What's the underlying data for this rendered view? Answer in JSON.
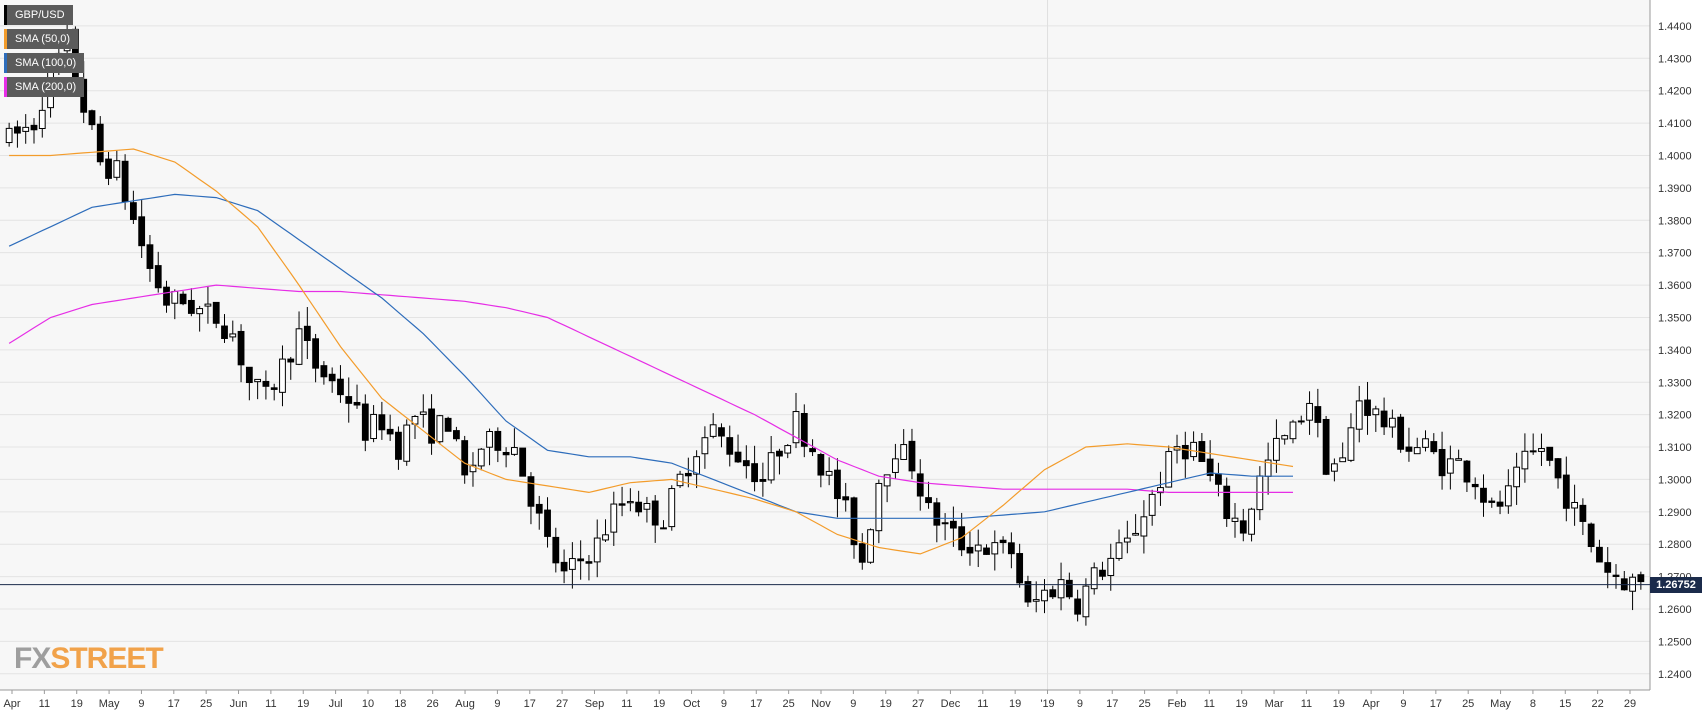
{
  "chart_data": {
    "type": "candlestick",
    "symbol": "GBP/USD",
    "legend": [
      {
        "label": "GBP/USD",
        "color": "#000000"
      },
      {
        "label": "SMA (50,0)",
        "color": "#f39c2b"
      },
      {
        "label": "SMA (100,0)",
        "color": "#2e6dbb"
      },
      {
        "label": "SMA (200,0)",
        "color": "#e62ee6"
      }
    ],
    "ylim": [
      1.235,
      1.448
    ],
    "y_ticks": [
      "1.4400",
      "1.4300",
      "1.4200",
      "1.4100",
      "1.4000",
      "1.3900",
      "1.3800",
      "1.3700",
      "1.3600",
      "1.3500",
      "1.3400",
      "1.3300",
      "1.3200",
      "1.3100",
      "1.3000",
      "1.2900",
      "1.2800",
      "1.2700",
      "1.2600",
      "1.2500",
      "1.2400"
    ],
    "x_ticks": [
      "Apr",
      "11",
      "19",
      "May",
      "9",
      "17",
      "25",
      "Jun",
      "11",
      "19",
      "Jul",
      "10",
      "18",
      "26",
      "Aug",
      "9",
      "17",
      "27",
      "Sep",
      "11",
      "19",
      "Oct",
      "9",
      "17",
      "25",
      "Nov",
      "9",
      "19",
      "27",
      "Dec",
      "11",
      "19",
      "'19",
      "9",
      "17",
      "25",
      "Feb",
      "11",
      "19",
      "Mar",
      "11",
      "19",
      "Apr",
      "9",
      "17",
      "25",
      "May",
      "8",
      "15",
      "22",
      "29"
    ],
    "current_price": 1.26752,
    "current_price_label": "1.26752",
    "sma_control_points": {
      "sma50": [
        [
          0,
          1.4
        ],
        [
          5,
          1.4
        ],
        [
          10,
          1.401
        ],
        [
          15,
          1.402
        ],
        [
          20,
          1.398
        ],
        [
          25,
          1.389
        ],
        [
          30,
          1.378
        ],
        [
          35,
          1.36
        ],
        [
          40,
          1.341
        ],
        [
          45,
          1.325
        ],
        [
          50,
          1.315
        ],
        [
          55,
          1.305
        ],
        [
          60,
          1.3
        ],
        [
          65,
          1.298
        ],
        [
          70,
          1.296
        ],
        [
          75,
          1.299
        ],
        [
          80,
          1.3
        ],
        [
          85,
          1.297
        ],
        [
          90,
          1.294
        ],
        [
          95,
          1.29
        ],
        [
          100,
          1.283
        ],
        [
          105,
          1.279
        ],
        [
          110,
          1.277
        ],
        [
          115,
          1.282
        ],
        [
          120,
          1.292
        ],
        [
          125,
          1.303
        ],
        [
          130,
          1.31
        ],
        [
          135,
          1.311
        ],
        [
          140,
          1.31
        ],
        [
          145,
          1.308
        ],
        [
          150,
          1.306
        ],
        [
          155,
          1.304
        ]
      ],
      "sma100": [
        [
          0,
          1.372
        ],
        [
          10,
          1.384
        ],
        [
          20,
          1.388
        ],
        [
          25,
          1.387
        ],
        [
          30,
          1.383
        ],
        [
          35,
          1.374
        ],
        [
          40,
          1.365
        ],
        [
          45,
          1.356
        ],
        [
          50,
          1.345
        ],
        [
          55,
          1.332
        ],
        [
          60,
          1.318
        ],
        [
          65,
          1.309
        ],
        [
          70,
          1.307
        ],
        [
          75,
          1.307
        ],
        [
          80,
          1.305
        ],
        [
          85,
          1.3
        ],
        [
          90,
          1.295
        ],
        [
          95,
          1.29
        ],
        [
          100,
          1.288
        ],
        [
          105,
          1.288
        ],
        [
          110,
          1.288
        ],
        [
          115,
          1.288
        ],
        [
          120,
          1.289
        ],
        [
          125,
          1.29
        ],
        [
          130,
          1.293
        ],
        [
          135,
          1.296
        ],
        [
          140,
          1.299
        ],
        [
          145,
          1.302
        ],
        [
          150,
          1.301
        ],
        [
          155,
          1.301
        ]
      ],
      "sma200": [
        [
          0,
          1.342
        ],
        [
          5,
          1.35
        ],
        [
          10,
          1.354
        ],
        [
          15,
          1.356
        ],
        [
          20,
          1.358
        ],
        [
          25,
          1.36
        ],
        [
          30,
          1.359
        ],
        [
          35,
          1.358
        ],
        [
          40,
          1.358
        ],
        [
          45,
          1.357
        ],
        [
          50,
          1.356
        ],
        [
          55,
          1.355
        ],
        [
          60,
          1.353
        ],
        [
          65,
          1.35
        ],
        [
          70,
          1.344
        ],
        [
          75,
          1.338
        ],
        [
          80,
          1.332
        ],
        [
          85,
          1.326
        ],
        [
          90,
          1.32
        ],
        [
          95,
          1.313
        ],
        [
          100,
          1.306
        ],
        [
          105,
          1.301
        ],
        [
          110,
          1.299
        ],
        [
          115,
          1.298
        ],
        [
          120,
          1.297
        ],
        [
          125,
          1.297
        ],
        [
          130,
          1.297
        ],
        [
          135,
          1.297
        ],
        [
          140,
          1.296
        ],
        [
          145,
          1.296
        ],
        [
          150,
          1.296
        ],
        [
          155,
          1.296
        ]
      ]
    },
    "close_anchors": [
      [
        0,
        1.405
      ],
      [
        3,
        1.41
      ],
      [
        5,
        1.425
      ],
      [
        7,
        1.435
      ],
      [
        9,
        1.415
      ],
      [
        11,
        1.398
      ],
      [
        13,
        1.395
      ],
      [
        15,
        1.38
      ],
      [
        17,
        1.365
      ],
      [
        19,
        1.355
      ],
      [
        21,
        1.355
      ],
      [
        23,
        1.352
      ],
      [
        25,
        1.35
      ],
      [
        27,
        1.345
      ],
      [
        29,
        1.33
      ],
      [
        31,
        1.325
      ],
      [
        33,
        1.335
      ],
      [
        35,
        1.345
      ],
      [
        37,
        1.335
      ],
      [
        39,
        1.33
      ],
      [
        41,
        1.325
      ],
      [
        43,
        1.315
      ],
      [
        45,
        1.318
      ],
      [
        47,
        1.31
      ],
      [
        49,
        1.32
      ],
      [
        51,
        1.315
      ],
      [
        53,
        1.318
      ],
      [
        55,
        1.3
      ],
      [
        57,
        1.31
      ],
      [
        59,
        1.312
      ],
      [
        61,
        1.31
      ],
      [
        63,
        1.295
      ],
      [
        65,
        1.28
      ],
      [
        67,
        1.27
      ],
      [
        69,
        1.275
      ],
      [
        71,
        1.28
      ],
      [
        73,
        1.29
      ],
      [
        75,
        1.295
      ],
      [
        77,
        1.29
      ],
      [
        79,
        1.288
      ],
      [
        81,
        1.3
      ],
      [
        83,
        1.31
      ],
      [
        85,
        1.315
      ],
      [
        87,
        1.31
      ],
      [
        89,
        1.305
      ],
      [
        91,
        1.3
      ],
      [
        93,
        1.31
      ],
      [
        95,
        1.318
      ],
      [
        97,
        1.31
      ],
      [
        99,
        1.3
      ],
      [
        101,
        1.29
      ],
      [
        103,
        1.275
      ],
      [
        105,
        1.3
      ],
      [
        107,
        1.31
      ],
      [
        109,
        1.305
      ],
      [
        111,
        1.29
      ],
      [
        113,
        1.285
      ],
      [
        115,
        1.28
      ],
      [
        117,
        1.28
      ],
      [
        119,
        1.278
      ],
      [
        121,
        1.278
      ],
      [
        123,
        1.26
      ],
      [
        125,
        1.265
      ],
      [
        127,
        1.268
      ],
      [
        129,
        1.262
      ],
      [
        131,
        1.27
      ],
      [
        133,
        1.275
      ],
      [
        135,
        1.28
      ],
      [
        137,
        1.29
      ],
      [
        139,
        1.3
      ],
      [
        141,
        1.31
      ],
      [
        143,
        1.31
      ],
      [
        145,
        1.3
      ],
      [
        147,
        1.29
      ],
      [
        149,
        1.285
      ],
      [
        151,
        1.3
      ],
      [
        153,
        1.31
      ],
      [
        155,
        1.315
      ],
      [
        157,
        1.325
      ],
      [
        159,
        1.305
      ],
      [
        161,
        1.305
      ],
      [
        163,
        1.325
      ],
      [
        165,
        1.32
      ],
      [
        167,
        1.315
      ],
      [
        169,
        1.31
      ],
      [
        171,
        1.31
      ],
      [
        173,
        1.305
      ],
      [
        175,
        1.305
      ],
      [
        177,
        1.3
      ],
      [
        179,
        1.29
      ],
      [
        181,
        1.295
      ],
      [
        183,
        1.305
      ],
      [
        185,
        1.31
      ],
      [
        187,
        1.3
      ],
      [
        189,
        1.29
      ],
      [
        191,
        1.28
      ],
      [
        193,
        1.272
      ],
      [
        195,
        1.269
      ],
      [
        197,
        1.268
      ]
    ],
    "x_range_bars": 198
  },
  "watermark": {
    "fx": "FX",
    "street": "STREET"
  }
}
